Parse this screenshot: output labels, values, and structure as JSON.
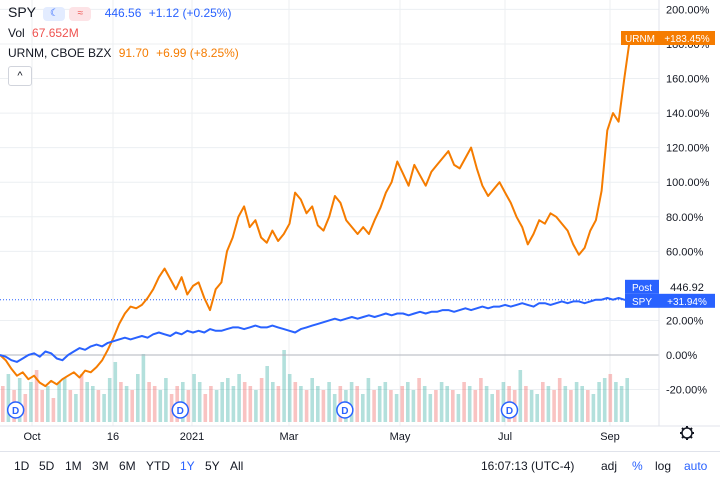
{
  "legend": {
    "symbol": "SPY",
    "price": "446.56",
    "change": "+1.12 (+0.25%)",
    "vol_label": "Vol",
    "vol_value": "67.652M",
    "compare_symbol": "URNM, CBOE BZX",
    "compare_price": "91.70",
    "compare_change": "+6.99 (+8.25%)",
    "collapse_icon": "chevron-up-icon"
  },
  "colors": {
    "spy": "#2962ff",
    "urnm": "#f57c00",
    "vol_up": "#26a69a",
    "vol_down": "#ef5350",
    "vol_text": "#ef5350",
    "grid": "#eceff2"
  },
  "chart_data": {
    "type": "line",
    "y_unit": "percent change",
    "ylim": [
      -30,
      205
    ],
    "y_ticks": [
      "200.00%",
      "180.00%",
      "160.00%",
      "140.00%",
      "120.00%",
      "100.00%",
      "80.00%",
      "60.00%",
      "20.00%",
      "0.00%",
      "-20.00%"
    ],
    "x_ticks": [
      "Oct",
      "16",
      "2021",
      "Mar",
      "May",
      "Jul",
      "Sep"
    ],
    "grid": true,
    "series": [
      {
        "name": "URNM",
        "values": [
          0,
          -3,
          -8,
          -12,
          -10,
          -14,
          -12,
          -16,
          -18,
          -15,
          -17,
          -14,
          -12,
          -10,
          -13,
          -9,
          -10,
          -7,
          -3,
          3,
          10,
          18,
          24,
          28,
          27,
          29,
          33,
          38,
          45,
          50,
          44,
          38,
          45,
          35,
          40,
          42,
          33,
          26,
          38,
          42,
          60,
          68,
          80,
          86,
          74,
          78,
          68,
          65,
          72,
          66,
          70,
          76,
          94,
          90,
          82,
          86,
          75,
          72,
          80,
          92,
          88,
          78,
          74,
          70,
          74,
          70,
          78,
          85,
          94,
          100,
          112,
          105,
          98,
          110,
          104,
          98,
          106,
          110,
          114,
          118,
          110,
          108,
          114,
          120,
          108,
          98,
          92,
          96,
          100,
          94,
          88,
          80,
          74,
          64,
          70,
          78,
          76,
          82,
          80,
          76,
          72,
          64,
          58,
          62,
          72,
          78,
          95,
          130,
          140,
          135,
          160,
          183.45
        ]
      },
      {
        "name": "SPY",
        "values": [
          0,
          -1,
          -3,
          -4,
          -2,
          0,
          1,
          -1,
          2,
          1,
          -2,
          -3,
          0,
          2,
          4,
          3,
          5,
          6,
          5,
          7,
          8,
          9,
          10,
          9,
          10,
          11,
          10,
          12,
          13,
          12,
          11,
          13,
          12,
          14,
          13,
          14,
          13,
          15,
          14,
          14,
          15,
          16,
          16,
          15,
          16,
          17,
          16,
          16,
          17,
          16,
          15,
          14,
          13,
          15,
          16,
          17,
          18,
          19,
          20,
          21,
          20,
          21,
          22,
          21,
          22,
          23,
          22,
          23,
          24,
          23,
          24,
          24,
          23,
          24,
          25,
          24,
          25,
          25,
          26,
          26,
          25,
          26,
          27,
          26,
          27,
          28,
          27,
          28,
          28,
          29,
          28,
          29,
          30,
          29,
          28,
          30,
          30,
          29,
          30,
          31,
          30,
          31,
          31,
          30,
          31,
          32,
          32,
          33,
          32,
          33,
          32,
          31.94
        ]
      }
    ],
    "volume_relative": [
      0.45,
      0.6,
      0.4,
      0.55,
      0.35,
      0.5,
      0.65,
      0.4,
      0.45,
      0.3,
      0.5,
      0.55,
      0.4,
      0.35,
      0.6,
      0.5,
      0.45,
      0.4,
      0.35,
      0.55,
      0.75,
      0.5,
      0.45,
      0.4,
      0.6,
      0.85,
      0.5,
      0.45,
      0.4,
      0.55,
      0.35,
      0.45,
      0.5,
      0.4,
      0.6,
      0.5,
      0.35,
      0.45,
      0.4,
      0.5,
      0.55,
      0.45,
      0.6,
      0.5,
      0.45,
      0.4,
      0.55,
      0.7,
      0.5,
      0.45,
      0.9,
      0.6,
      0.5,
      0.45,
      0.4,
      0.55,
      0.45,
      0.4,
      0.5,
      0.35,
      0.45,
      0.4,
      0.5,
      0.45,
      0.35,
      0.55,
      0.4,
      0.45,
      0.5,
      0.4,
      0.35,
      0.45,
      0.5,
      0.4,
      0.55,
      0.45,
      0.35,
      0.4,
      0.5,
      0.45,
      0.4,
      0.35,
      0.5,
      0.45,
      0.4,
      0.55,
      0.45,
      0.35,
      0.4,
      0.5,
      0.45,
      0.4,
      0.65,
      0.45,
      0.4,
      0.35,
      0.5,
      0.45,
      0.4,
      0.55,
      0.45,
      0.4,
      0.5,
      0.45,
      0.4,
      0.35,
      0.5,
      0.55,
      0.6,
      0.5,
      0.45,
      0.55
    ],
    "volume_direction": [
      0,
      1,
      0,
      1,
      0,
      1,
      0,
      0,
      1,
      0,
      1,
      1,
      0,
      1,
      0,
      1,
      1,
      0,
      1,
      1,
      1,
      0,
      1,
      0,
      1,
      1,
      0,
      0,
      1,
      1,
      0,
      0,
      1,
      0,
      1,
      1,
      0,
      0,
      1,
      1,
      1,
      1,
      1,
      0,
      0,
      1,
      0,
      1,
      1,
      0,
      1,
      1,
      0,
      1,
      0,
      1,
      1,
      0,
      1,
      1,
      0,
      1,
      1,
      0,
      1,
      1,
      0,
      1,
      1,
      0,
      1,
      0,
      1,
      1,
      0,
      1,
      1,
      0,
      1,
      1,
      0,
      1,
      0,
      1,
      0,
      0,
      1,
      1,
      0,
      1,
      0,
      0,
      1,
      0,
      1,
      1,
      0,
      1,
      0,
      0,
      1,
      0,
      1,
      1,
      0,
      1,
      1,
      1,
      0,
      1,
      1,
      1
    ],
    "dividend_markers": [
      "D",
      "D",
      "D",
      "D"
    ],
    "dividend_indices": [
      1,
      30,
      59,
      88
    ],
    "price_labels": [
      {
        "series": "URNM",
        "text": "URNM",
        "value_text": "+183.45%"
      },
      {
        "series": "SPY",
        "text": "Post",
        "value_text": "446.92"
      },
      {
        "series": "SPY",
        "text": "SPY",
        "value_text": "+31.94%"
      }
    ]
  },
  "bottom_bar": {
    "timeframes": [
      "1D",
      "5D",
      "1M",
      "3M",
      "6M",
      "YTD",
      "1Y",
      "5Y",
      "All"
    ],
    "selected": "1Y",
    "time": "16:07:13 (UTC-4)",
    "adj": "adj",
    "percent": "%",
    "log": "log",
    "auto": "auto",
    "settings_icon": "gear-icon"
  }
}
